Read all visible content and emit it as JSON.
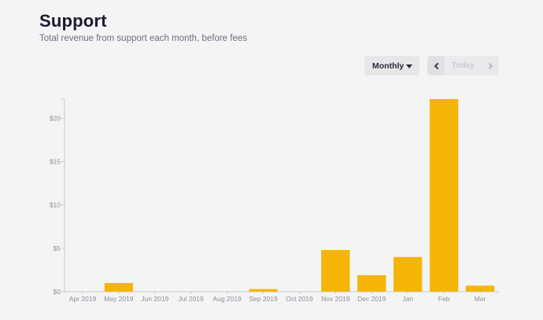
{
  "header": {
    "title": "Support",
    "subtitle": "Total revenue from support each month, before fees"
  },
  "controls": {
    "period_selected": "Monthly",
    "today_label": "Today"
  },
  "colors": {
    "bar": "#f5b506",
    "axis": "#c9c8cd",
    "title": "#1b1b30"
  },
  "chart_data": {
    "type": "bar",
    "categories": [
      "Apr 2019",
      "May 2019",
      "Jun 2019",
      "Jul 2019",
      "Aug 2019",
      "Sep 2019",
      "Oct 2019",
      "Nov 2019",
      "Dec 2019",
      "Jan",
      "Feb",
      "Mar"
    ],
    "values": [
      0,
      1.0,
      0,
      0,
      0,
      0.3,
      0,
      4.8,
      1.9,
      4.0,
      22.2,
      0.7
    ],
    "ylim": [
      0,
      22.2
    ],
    "yticks": [
      0,
      5,
      10,
      15,
      20
    ],
    "ytick_labels": [
      "$0",
      "$5",
      "$10",
      "$15",
      "$20"
    ],
    "grid": false,
    "legend": "none"
  }
}
